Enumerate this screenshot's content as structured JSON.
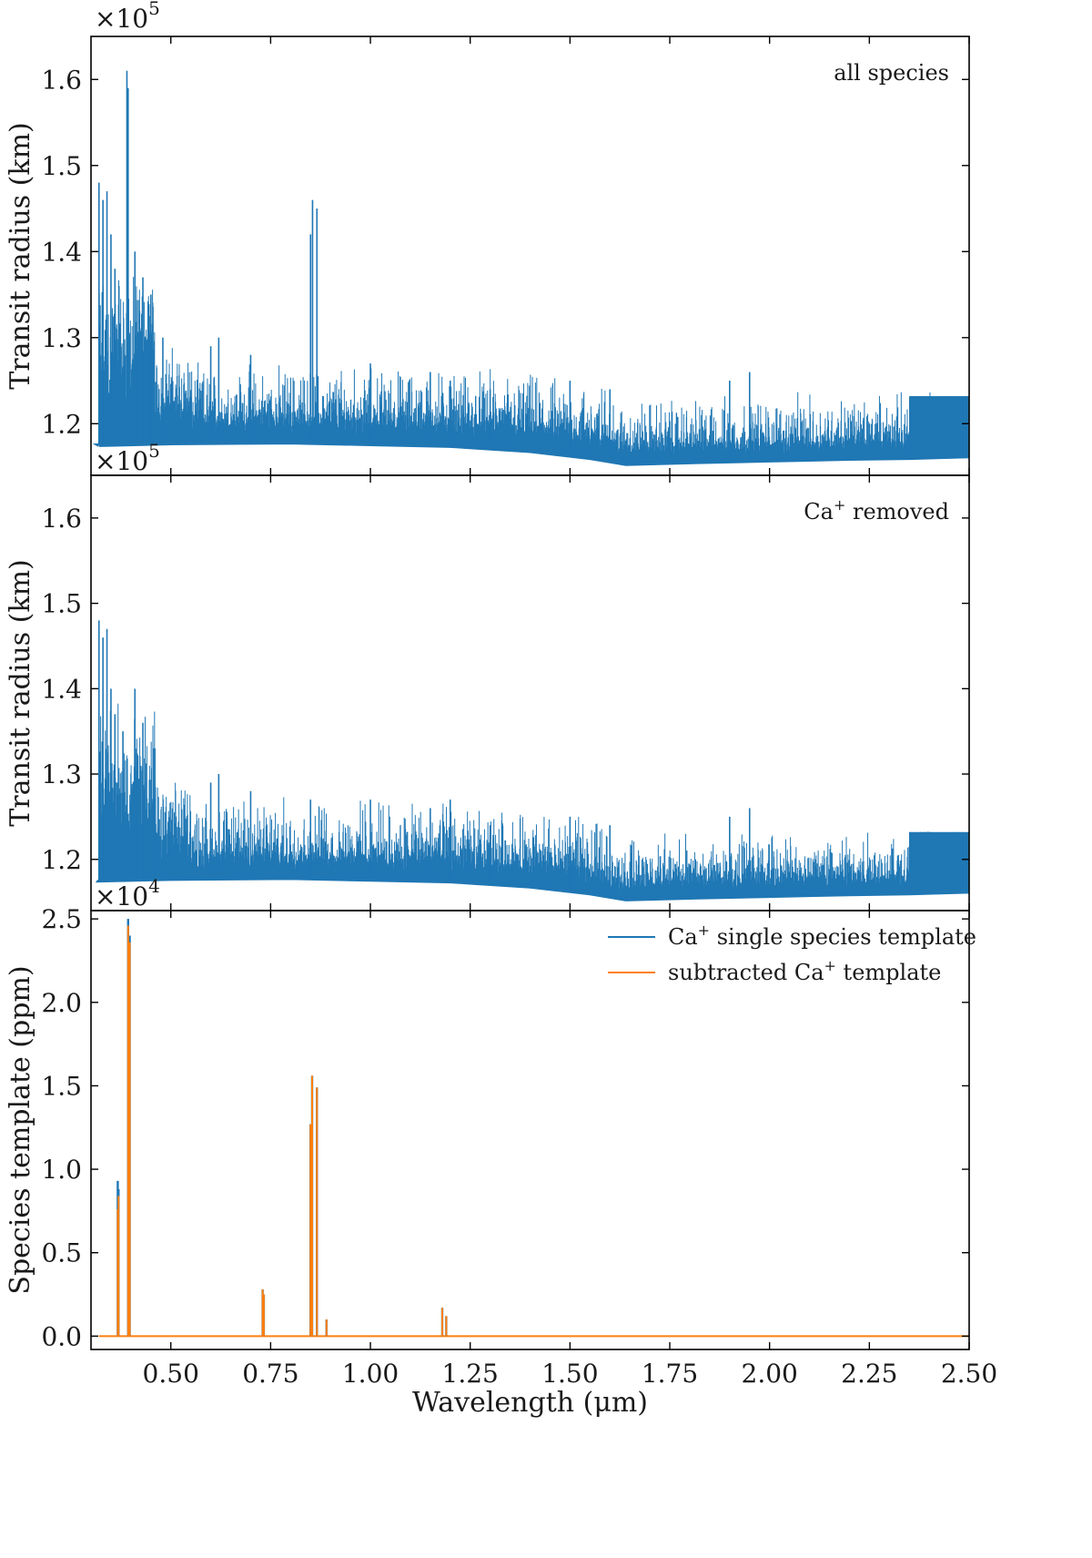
{
  "chart_data": [
    {
      "type": "line",
      "panel": "top",
      "annotation": "all species",
      "ylabel": "Transit radius (km)",
      "multiplier_base": "×10",
      "multiplier_exp": "5",
      "xlim": [
        0.3,
        2.5
      ],
      "ylim": [
        1.14,
        1.65
      ],
      "yticks": [
        1.2,
        1.3,
        1.4,
        1.5,
        1.6
      ],
      "ytick_labels": [
        "1.2",
        "1.3",
        "1.4",
        "1.5",
        "1.6"
      ],
      "series": [
        {
          "color": "#1f77b4",
          "baseline": [
            [
              0.32,
              1.175
            ],
            [
              0.5,
              1.177
            ],
            [
              0.8,
              1.178
            ],
            [
              1.0,
              1.176
            ],
            [
              1.2,
              1.174
            ],
            [
              1.4,
              1.168
            ],
            [
              1.55,
              1.16
            ],
            [
              1.64,
              1.153
            ],
            [
              1.8,
              1.155
            ],
            [
              2.0,
              1.157
            ],
            [
              2.2,
              1.159
            ],
            [
              2.35,
              1.16
            ],
            [
              2.5,
              1.162
            ]
          ],
          "peaks": [
            [
              0.32,
              1.48
            ],
            [
              0.33,
              1.46
            ],
            [
              0.34,
              1.47
            ],
            [
              0.35,
              1.42
            ],
            [
              0.36,
              1.38
            ],
            [
              0.37,
              1.36
            ],
            [
              0.39,
              1.61
            ],
            [
              0.393,
              1.59
            ],
            [
              0.41,
              1.4
            ],
            [
              0.43,
              1.37
            ],
            [
              0.45,
              1.35
            ],
            [
              0.48,
              1.3
            ],
            [
              0.6,
              1.29
            ],
            [
              0.62,
              1.3
            ],
            [
              0.7,
              1.28
            ],
            [
              0.85,
              1.42
            ],
            [
              0.855,
              1.46
            ],
            [
              0.866,
              1.45
            ],
            [
              1.0,
              1.27
            ],
            [
              1.15,
              1.26
            ],
            [
              1.2,
              1.25
            ],
            [
              1.3,
              1.24
            ],
            [
              1.5,
              1.25
            ],
            [
              1.6,
              1.24
            ],
            [
              1.9,
              1.25
            ],
            [
              1.95,
              1.26
            ]
          ],
          "plateau": {
            "x": [
              2.35,
              2.5
            ],
            "y": 1.232
          }
        }
      ]
    },
    {
      "type": "line",
      "panel": "middle",
      "annotation_base": "Ca",
      "annotation_sup": "+",
      "annotation_rest": " removed",
      "ylabel": "Transit radius (km)",
      "multiplier_base": "×10",
      "multiplier_exp": "5",
      "xlim": [
        0.3,
        2.5
      ],
      "ylim": [
        1.14,
        1.65
      ],
      "yticks": [
        1.2,
        1.3,
        1.4,
        1.5,
        1.6
      ],
      "ytick_labels": [
        "1.2",
        "1.3",
        "1.4",
        "1.5",
        "1.6"
      ],
      "series": [
        {
          "color": "#1f77b4",
          "baseline": [
            [
              0.32,
              1.175
            ],
            [
              0.5,
              1.177
            ],
            [
              0.8,
              1.178
            ],
            [
              1.0,
              1.176
            ],
            [
              1.2,
              1.174
            ],
            [
              1.4,
              1.168
            ],
            [
              1.55,
              1.16
            ],
            [
              1.64,
              1.153
            ],
            [
              1.8,
              1.155
            ],
            [
              2.0,
              1.157
            ],
            [
              2.2,
              1.159
            ],
            [
              2.35,
              1.16
            ],
            [
              2.5,
              1.162
            ]
          ],
          "peaks": [
            [
              0.32,
              1.48
            ],
            [
              0.33,
              1.46
            ],
            [
              0.34,
              1.47
            ],
            [
              0.35,
              1.4
            ],
            [
              0.36,
              1.37
            ],
            [
              0.38,
              1.35
            ],
            [
              0.41,
              1.4
            ],
            [
              0.43,
              1.36
            ],
            [
              0.46,
              1.33
            ],
            [
              0.6,
              1.29
            ],
            [
              0.62,
              1.3
            ],
            [
              0.7,
              1.28
            ],
            [
              0.85,
              1.27
            ],
            [
              1.0,
              1.27
            ],
            [
              1.15,
              1.26
            ],
            [
              1.2,
              1.27
            ],
            [
              1.3,
              1.24
            ],
            [
              1.5,
              1.25
            ],
            [
              1.6,
              1.24
            ],
            [
              1.9,
              1.25
            ],
            [
              1.95,
              1.26
            ]
          ],
          "plateau": {
            "x": [
              2.35,
              2.5
            ],
            "y": 1.232
          }
        }
      ]
    },
    {
      "type": "line",
      "panel": "bottom",
      "ylabel": "Species template (ppm)",
      "xlabel": "Wavelength (μm)",
      "multiplier_base": "×10",
      "multiplier_exp": "4",
      "xlim": [
        0.3,
        2.5
      ],
      "ylim": [
        -0.08,
        2.55
      ],
      "yticks": [
        0.0,
        0.5,
        1.0,
        1.5,
        2.0,
        2.5
      ],
      "ytick_labels": [
        "0.0",
        "0.5",
        "1.0",
        "1.5",
        "2.0",
        "2.5"
      ],
      "xticks": [
        0.5,
        0.75,
        1.0,
        1.25,
        1.5,
        1.75,
        2.0,
        2.25,
        2.5
      ],
      "xtick_labels": [
        "0.50",
        "0.75",
        "1.00",
        "1.25",
        "1.50",
        "1.75",
        "2.00",
        "2.25",
        "2.50"
      ],
      "legend": {
        "placement": "top-right",
        "entries": [
          {
            "label_base": "Ca",
            "label_sup": "+",
            "label_pre": "",
            "label_rest": " single species template",
            "color": "#1f77b4"
          },
          {
            "label_base": "Ca",
            "label_sup": "+",
            "label_pre": "subtracted ",
            "label_rest": " template",
            "color": "#ff7f0e"
          }
        ]
      },
      "series": [
        {
          "color": "#1f77b4",
          "lines": [
            [
              0.367,
              0.93
            ],
            [
              0.369,
              0.88
            ],
            [
              0.393,
              2.5
            ],
            [
              0.397,
              2.4
            ],
            [
              0.73,
              0.28
            ],
            [
              0.733,
              0.25
            ],
            [
              0.85,
              1.27
            ],
            [
              0.854,
              1.56
            ],
            [
              0.866,
              1.49
            ],
            [
              0.89,
              0.1
            ],
            [
              1.18,
              0.17
            ],
            [
              1.19,
              0.12
            ]
          ]
        },
        {
          "color": "#ff7f0e",
          "lines": [
            [
              0.367,
              0.76
            ],
            [
              0.369,
              0.84
            ],
            [
              0.393,
              2.46
            ],
            [
              0.397,
              2.36
            ],
            [
              0.73,
              0.28
            ],
            [
              0.733,
              0.25
            ],
            [
              0.85,
              1.27
            ],
            [
              0.854,
              1.56
            ],
            [
              0.866,
              1.49
            ],
            [
              0.89,
              0.1
            ],
            [
              1.18,
              0.17
            ],
            [
              1.19,
              0.12
            ]
          ]
        }
      ]
    }
  ]
}
